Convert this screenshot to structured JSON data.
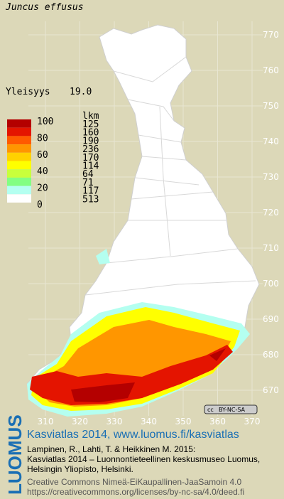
{
  "title": "Juncus effusus",
  "frequency": {
    "label": "Yleisyys",
    "value": "19.0"
  },
  "legend": {
    "scale": [
      "100",
      "80",
      "60",
      "40",
      "20",
      "0"
    ],
    "count_header": "lkm",
    "counts": [
      "125",
      "160",
      "190",
      "236",
      "170",
      "114",
      "64",
      "71",
      "117",
      "513"
    ],
    "colors": [
      "#b40000",
      "#e41400",
      "#ff5a00",
      "#ff9600",
      "#ffd200",
      "#ffff00",
      "#c8ff3c",
      "#82ff82",
      "#b4fff0",
      "#ffffff"
    ]
  },
  "map": {
    "y_ticks": [
      "770",
      "760",
      "750",
      "740",
      "730",
      "720",
      "710",
      "700",
      "690",
      "680",
      "670"
    ],
    "x_ticks": [
      "310",
      "320",
      "330",
      "340",
      "350",
      "360",
      "370"
    ],
    "license_badge": "BY-NC-SA"
  },
  "footer": {
    "logo": "LUOMUS",
    "headline": "Kasviatlas 2014, www.luomus.fi/kasviatlas",
    "citation": [
      "Lampinen, R., Lahti, T. & Heikkinen M. 2015:",
      "Kasviatlas 2014 – Luonnontieteellinen keskusmuseo Luomus,",
      "Helsingin Yliopisto, Helsinki."
    ],
    "license": [
      "Creative Commons Nimeä-EiKaupallinen-JaaSamoin 4.0",
      "https://creativecommons.org/licenses/by-nc-sa/4.0/deed.fi"
    ]
  }
}
